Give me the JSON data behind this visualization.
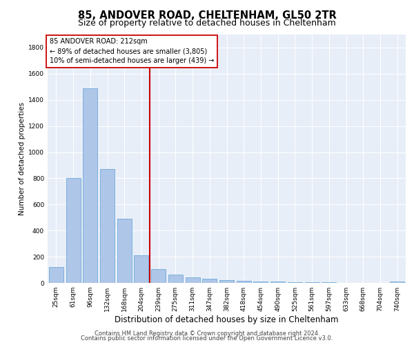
{
  "title": "85, ANDOVER ROAD, CHELTENHAM, GL50 2TR",
  "subtitle": "Size of property relative to detached houses in Cheltenham",
  "xlabel": "Distribution of detached houses by size in Cheltenham",
  "ylabel": "Number of detached properties",
  "categories": [
    "25sqm",
    "61sqm",
    "96sqm",
    "132sqm",
    "168sqm",
    "204sqm",
    "239sqm",
    "275sqm",
    "311sqm",
    "347sqm",
    "382sqm",
    "418sqm",
    "454sqm",
    "490sqm",
    "525sqm",
    "561sqm",
    "597sqm",
    "633sqm",
    "668sqm",
    "704sqm",
    "740sqm"
  ],
  "values": [
    120,
    800,
    1490,
    870,
    490,
    210,
    105,
    65,
    42,
    30,
    20,
    18,
    12,
    8,
    5,
    4,
    3,
    2,
    2,
    2,
    12
  ],
  "bar_color": "#aec6e8",
  "bar_edgecolor": "#5a9fd4",
  "vline_color": "#cc0000",
  "annotation_title": "85 ANDOVER ROAD: 212sqm",
  "annotation_line1": "← 89% of detached houses are smaller (3,805)",
  "annotation_line2": "10% of semi-detached houses are larger (439) →",
  "annotation_box_color": "#ffffff",
  "annotation_box_edgecolor": "#cc0000",
  "ylim": [
    0,
    1900
  ],
  "yticks": [
    0,
    200,
    400,
    600,
    800,
    1000,
    1200,
    1400,
    1600,
    1800
  ],
  "background_color": "#e8eef8",
  "footer1": "Contains HM Land Registry data © Crown copyright and database right 2024.",
  "footer2": "Contains public sector information licensed under the Open Government Licence v3.0.",
  "title_fontsize": 10.5,
  "subtitle_fontsize": 9,
  "xlabel_fontsize": 8.5,
  "ylabel_fontsize": 7.5,
  "tick_fontsize": 6.5,
  "annotation_fontsize": 7,
  "footer_fontsize": 6
}
